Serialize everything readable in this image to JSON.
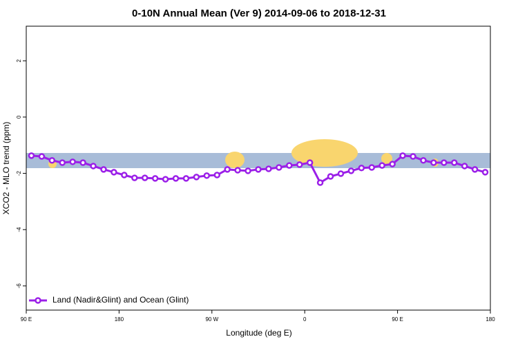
{
  "chart_data": {
    "type": "line",
    "title": "0-10N Annual Mean (Ver 9)   2014-09-06 to 2018-12-31",
    "xlabel": "Longitude (deg E)",
    "ylabel": "XCO2 - MLO trend (ppm)",
    "x": [
      95,
      105,
      115,
      125,
      135,
      145,
      155,
      165,
      175,
      185,
      195,
      205,
      215,
      225,
      235,
      245,
      255,
      265,
      275,
      285,
      295,
      305,
      315,
      325,
      335,
      345,
      355,
      365,
      375,
      385,
      395,
      405,
      415,
      425,
      435,
      445,
      455,
      465,
      475,
      485,
      495,
      505,
      515,
      525,
      535
    ],
    "series": [
      {
        "name": "Land (Nadir&Glint) and Ocean (Glint)",
        "color": "#9b1fe8",
        "values": [
          -1.37,
          -1.4,
          -1.54,
          -1.62,
          -1.59,
          -1.62,
          -1.74,
          -1.86,
          -1.96,
          -2.06,
          -2.16,
          -2.16,
          -2.18,
          -2.21,
          -2.18,
          -2.18,
          -2.13,
          -2.08,
          -2.06,
          -1.86,
          -1.89,
          -1.91,
          -1.86,
          -1.84,
          -1.79,
          -1.72,
          -1.69,
          -1.62,
          -2.33,
          -2.11,
          -2.01,
          -1.91,
          -1.81,
          -1.79,
          -1.72,
          -1.67,
          -1.37,
          -1.4,
          -1.54,
          -1.62,
          -1.62,
          -1.62,
          -1.74,
          -1.86,
          -1.96
        ]
      }
    ],
    "xlim": [
      90,
      540
    ],
    "xticks": [
      {
        "value": 90,
        "label": "90 E"
      },
      180,
      {
        "value": 270,
        "label": "90 W"
      },
      {
        "value": 360,
        "label": "0"
      },
      {
        "value": 450,
        "label": "90 E"
      },
      {
        "value": 540,
        "label": "180"
      }
    ],
    "ylim": [
      -6.86,
      3.23
    ],
    "yticks": [
      -6,
      -4,
      -2,
      0,
      2
    ],
    "legend": "bottom-left"
  }
}
